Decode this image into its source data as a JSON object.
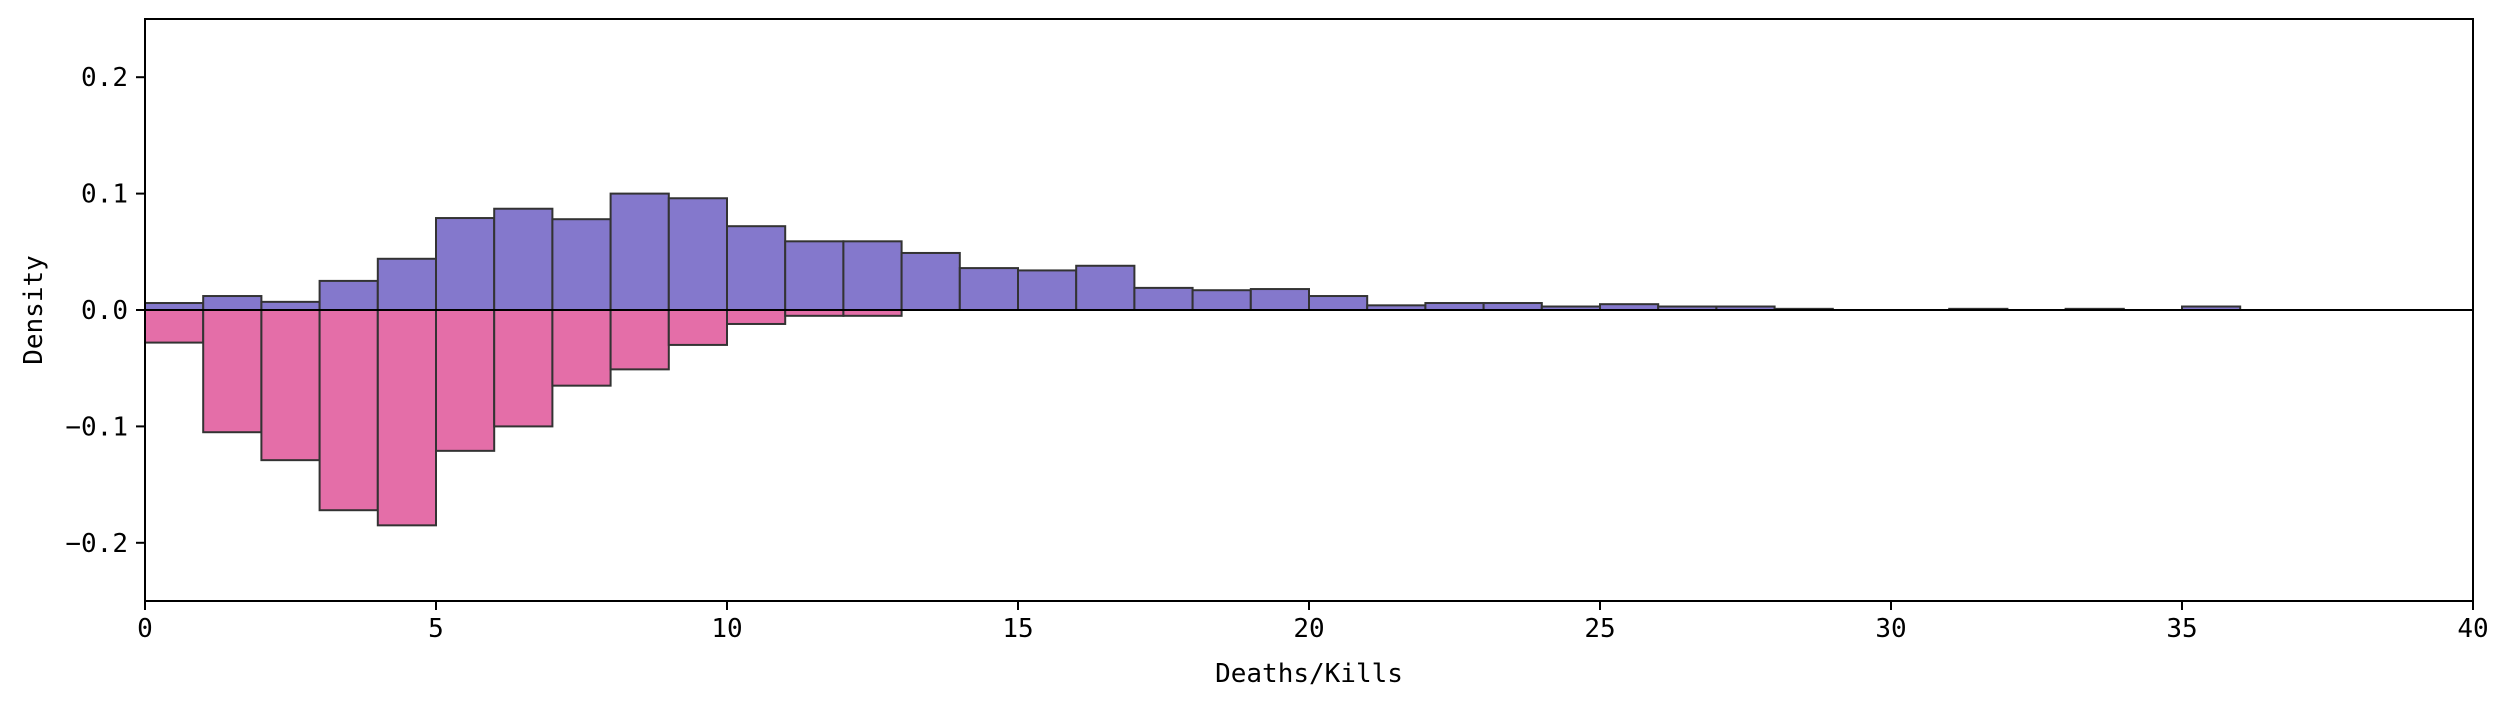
{
  "chart_data": {
    "type": "bar",
    "subtype": "mirrored-histogram",
    "title": "",
    "xlabel": "Deaths/Kills",
    "ylabel": "Density",
    "xlim": [
      0,
      40
    ],
    "ylim": [
      -0.25,
      0.25
    ],
    "x_ticks": [
      0,
      5,
      10,
      15,
      20,
      25,
      30,
      35,
      40
    ],
    "y_ticks": [
      -0.2,
      -0.1,
      0.0,
      0.1,
      0.2
    ],
    "y_tick_labels": [
      "−0.2",
      "−0.1",
      "0.0",
      "0.1",
      "0.2"
    ],
    "grid": false,
    "legend": "none",
    "bin_width": 1,
    "bin_edges": [
      0,
      1,
      2,
      3,
      4,
      5,
      6,
      7,
      8,
      9,
      10,
      11,
      12,
      13,
      14,
      15,
      16,
      17,
      18,
      19,
      20,
      21,
      22,
      23,
      24,
      25,
      26,
      27,
      28,
      29,
      30,
      31,
      32,
      33,
      34,
      35,
      36
    ],
    "series": [
      {
        "direction": "up",
        "color": "#8478CC",
        "values": [
          0.006,
          0.012,
          0.007,
          0.025,
          0.044,
          0.079,
          0.087,
          0.078,
          0.1,
          0.096,
          0.072,
          0.059,
          0.059,
          0.049,
          0.036,
          0.034,
          0.038,
          0.019,
          0.017,
          0.018,
          0.012,
          0.004,
          0.006,
          0.006,
          0.003,
          0.005,
          0.003,
          0.003,
          0.001,
          0.0,
          0.0,
          0.001,
          0.0,
          0.001,
          0.0,
          0.003
        ]
      },
      {
        "direction": "down",
        "color": "#E46EA8",
        "values": [
          -0.028,
          -0.105,
          -0.129,
          -0.172,
          -0.185,
          -0.121,
          -0.1,
          -0.065,
          -0.051,
          -0.03,
          -0.012,
          -0.005,
          -0.005,
          0,
          0,
          0,
          0,
          0,
          0,
          0,
          0,
          0,
          0,
          0,
          0,
          0,
          0,
          0,
          0,
          0,
          0,
          0,
          0,
          0,
          0,
          0
        ]
      }
    ],
    "edge_color": "#333333",
    "baseline_y": 0
  }
}
